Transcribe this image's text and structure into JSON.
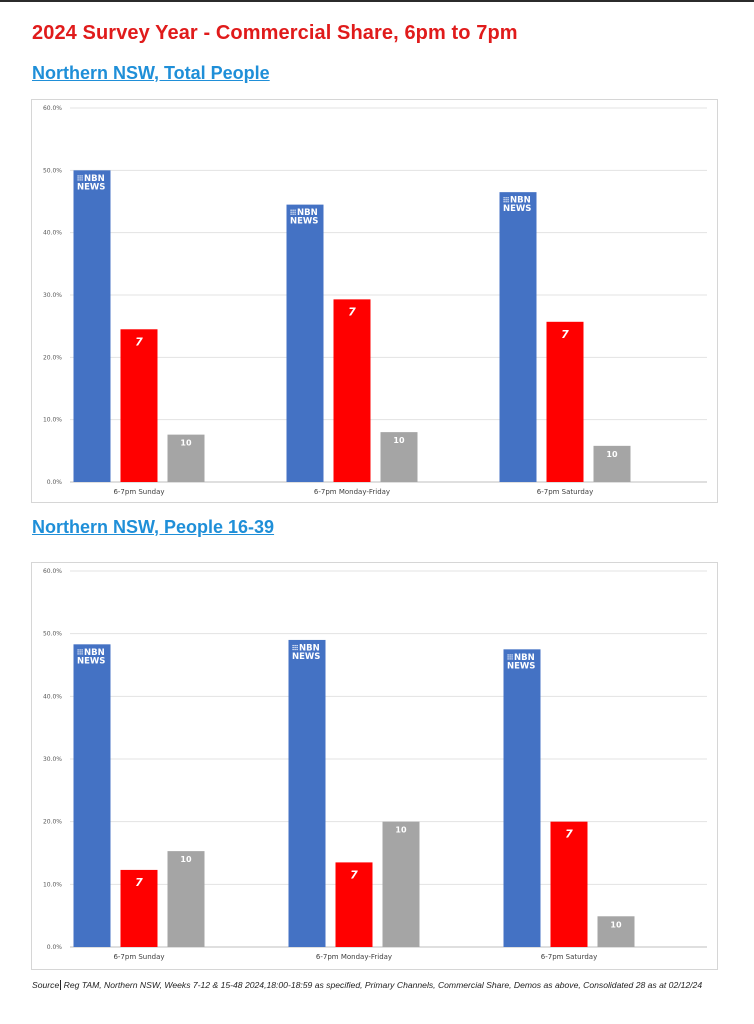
{
  "page": {
    "title": "2024 Survey Year - Commercial Share, 6pm to 7pm"
  },
  "sections": [
    {
      "heading": "Northern NSW, Total People"
    },
    {
      "heading": "Northern NSW, People 16-39"
    }
  ],
  "logos": {
    "nbn_line1": "NBN",
    "nbn_line2": "NEWS",
    "seven": "7",
    "ten": "10"
  },
  "colors": {
    "nbn": "#4472c4",
    "seven": "#ff0000",
    "ten": "#a5a5a5",
    "title": "#e01b1b",
    "heading": "#1f8fd8"
  },
  "chart_data": [
    {
      "type": "bar",
      "title": "Northern NSW, Total People",
      "categories": [
        "6-7pm Sunday",
        "6-7pm Monday-Friday",
        "6-7pm Saturday"
      ],
      "series": [
        {
          "name": "NBN News",
          "logo": "nbn",
          "values": [
            50.0,
            44.5,
            46.5
          ]
        },
        {
          "name": "Seven",
          "logo": "seven",
          "values": [
            24.5,
            29.3,
            25.7
          ]
        },
        {
          "name": "Ten",
          "logo": "ten",
          "values": [
            7.6,
            8.0,
            5.8
          ]
        }
      ],
      "ylim": [
        0,
        60
      ],
      "yticks": [
        "0.0%",
        "10.0%",
        "20.0%",
        "30.0%",
        "40.0%",
        "50.0%",
        "60.0%"
      ],
      "grid": true,
      "legend": "none"
    },
    {
      "type": "bar",
      "title": "Northern NSW, People 16-39",
      "categories": [
        "6-7pm Sunday",
        "6-7pm Monday-Friday",
        "6-7pm Saturday"
      ],
      "series": [
        {
          "name": "NBN News",
          "logo": "nbn",
          "values": [
            48.3,
            49.0,
            47.5
          ]
        },
        {
          "name": "Seven",
          "logo": "seven",
          "values": [
            12.3,
            13.5,
            20.0
          ]
        },
        {
          "name": "Ten",
          "logo": "ten",
          "values": [
            15.3,
            20.0,
            4.9
          ]
        }
      ],
      "ylim": [
        0,
        60
      ],
      "yticks": [
        "0.0%",
        "10.0%",
        "20.0%",
        "30.0%",
        "40.0%",
        "50.0%",
        "60.0%"
      ],
      "grid": true,
      "legend": "none"
    }
  ],
  "footer": {
    "source_label": "Source",
    "source_text": "Reg TAM, Northern NSW, Weeks 7-12 & 15-48 2024,18:00-18:59 as specified, Primary Channels, Commercial Share, Demos as above, Consolidated 28 as at 02/12/24"
  }
}
